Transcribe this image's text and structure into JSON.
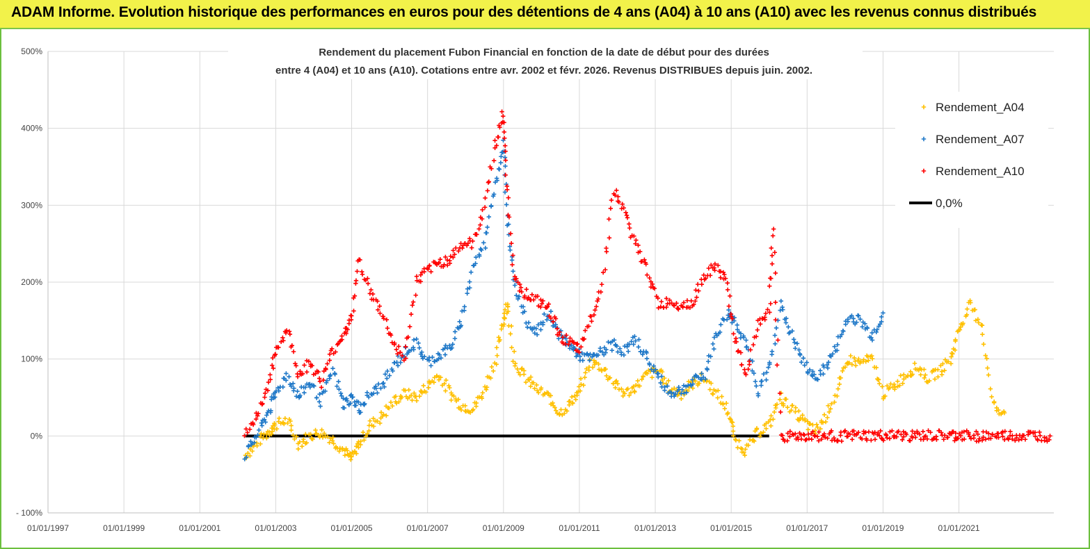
{
  "header": {
    "title": "ADAM Informe. Evolution historique des performances en euros pour des détentions de 4 ans (A04) à 10 ans (A10) avec les revenus connus distribués"
  },
  "chart_data": {
    "type": "scatter",
    "title_lines": [
      "Rendement du placement Fubon Financial  en fonction de la date de début pour des durées",
      "entre 4 (A04) et 10 ans (A10).  Cotations entre avr. 2002 et févr. 2026. Revenus DISTRIBUES depuis juin. 2002."
    ],
    "xlabel": "",
    "ylabel": "",
    "x_ticks": [
      "01/01/1997",
      "01/01/1999",
      "01/01/2001",
      "01/01/2003",
      "01/01/2005",
      "01/01/2007",
      "01/01/2009",
      "01/01/2011",
      "01/01/2013",
      "01/01/2015",
      "01/01/2017",
      "01/01/2019",
      "01/01/2021"
    ],
    "xlim": [
      1997.0,
      2023.5
    ],
    "y_ticks": [
      "- 100%",
      "0%",
      "100%",
      "200%",
      "300%",
      "400%",
      "500%"
    ],
    "ylim": [
      -100,
      500
    ],
    "legend_position": "top-right",
    "colors": {
      "A04": "#ffc000",
      "A07": "#1f78c8",
      "A10": "#ff0000",
      "zero": "#000000"
    },
    "series": [
      {
        "name": "Rendement_A04",
        "color": "#ffc000",
        "x": [
          2002.2,
          2002.5,
          2002.8,
          2003.0,
          2003.3,
          2003.6,
          2003.9,
          2004.2,
          2004.5,
          2004.8,
          2005.0,
          2005.2,
          2005.5,
          2005.8,
          2006.1,
          2006.4,
          2006.7,
          2007.0,
          2007.3,
          2007.6,
          2007.9,
          2008.2,
          2008.5,
          2008.8,
          2009.0,
          2009.1,
          2009.3,
          2009.6,
          2009.9,
          2010.2,
          2010.5,
          2010.8,
          2011.0,
          2011.3,
          2011.6,
          2011.9,
          2012.2,
          2012.5,
          2012.8,
          2013.1,
          2013.4,
          2013.7,
          2014.0,
          2014.3,
          2014.6,
          2014.9,
          2015.1,
          2015.4,
          2015.7,
          2016.0,
          2016.3,
          2016.6,
          2016.9,
          2017.2,
          2017.5,
          2017.8,
          2018.1,
          2018.4,
          2018.7,
          2019.0,
          2019.3,
          2019.6,
          2019.9,
          2020.2,
          2020.5,
          2020.8,
          2021.0,
          2021.3,
          2021.6,
          2021.9,
          2022.2
        ],
        "values": [
          -25,
          -10,
          5,
          15,
          20,
          -10,
          0,
          5,
          -5,
          -20,
          -30,
          -10,
          15,
          25,
          45,
          55,
          50,
          65,
          80,
          55,
          40,
          35,
          60,
          100,
          150,
          175,
          95,
          75,
          60,
          50,
          30,
          45,
          60,
          95,
          90,
          70,
          55,
          65,
          80,
          85,
          60,
          55,
          70,
          75,
          55,
          35,
          -5,
          -20,
          5,
          15,
          50,
          35,
          20,
          5,
          25,
          60,
          100,
          95,
          100,
          55,
          65,
          80,
          90,
          75,
          85,
          100,
          140,
          170,
          145,
          40,
          30
        ]
      },
      {
        "name": "Rendement_A07",
        "color": "#1f78c8",
        "x": [
          2002.2,
          2002.5,
          2002.8,
          2003.0,
          2003.3,
          2003.6,
          2003.9,
          2004.2,
          2004.5,
          2004.8,
          2005.0,
          2005.2,
          2005.5,
          2005.8,
          2006.1,
          2006.4,
          2006.7,
          2007.0,
          2007.3,
          2007.6,
          2007.9,
          2008.2,
          2008.5,
          2008.8,
          2009.0,
          2009.1,
          2009.3,
          2009.6,
          2009.9,
          2010.2,
          2010.5,
          2010.8,
          2011.0,
          2011.3,
          2011.6,
          2011.9,
          2012.2,
          2012.5,
          2012.8,
          2013.1,
          2013.4,
          2013.7,
          2014.0,
          2014.3,
          2014.6,
          2014.9,
          2015.1,
          2015.4,
          2015.7,
          2016.0,
          2016.3,
          2016.6,
          2016.9,
          2017.2,
          2017.5,
          2017.8,
          2018.1,
          2018.4,
          2018.7,
          2019.0
        ],
        "values": [
          -25,
          0,
          30,
          55,
          80,
          50,
          70,
          45,
          85,
          40,
          50,
          35,
          55,
          65,
          90,
          110,
          120,
          95,
          105,
          115,
          150,
          220,
          250,
          330,
          380,
          280,
          200,
          150,
          135,
          160,
          130,
          115,
          105,
          100,
          110,
          120,
          110,
          125,
          100,
          75,
          55,
          60,
          70,
          80,
          130,
          160,
          150,
          120,
          55,
          90,
          170,
          130,
          95,
          75,
          90,
          120,
          155,
          150,
          130,
          160
        ]
      },
      {
        "name": "Rendement_A10",
        "color": "#ff0000",
        "x": [
          2002.2,
          2002.5,
          2002.8,
          2003.0,
          2003.3,
          2003.6,
          2003.9,
          2004.2,
          2004.5,
          2004.8,
          2005.0,
          2005.2,
          2005.5,
          2005.8,
          2006.1,
          2006.4,
          2006.7,
          2007.0,
          2007.3,
          2007.6,
          2007.9,
          2008.2,
          2008.5,
          2008.8,
          2009.0,
          2009.1,
          2009.3,
          2009.6,
          2009.9,
          2010.2,
          2010.5,
          2010.8,
          2011.0,
          2011.3,
          2011.6,
          2011.9,
          2012.2,
          2012.5,
          2012.8,
          2013.1,
          2013.4,
          2013.7,
          2014.0,
          2014.3,
          2014.6,
          2014.9,
          2015.1,
          2015.4,
          2015.7,
          2016.0,
          2016.1,
          2016.3,
          2016.6,
          2016.9,
          2017.2,
          2017.5,
          2017.8,
          2018.1,
          2018.4,
          2018.7,
          2019.0,
          2019.3,
          2019.6,
          2019.9,
          2020.2,
          2020.5,
          2020.8,
          2021.0,
          2021.3,
          2021.6,
          2021.9,
          2022.2,
          2022.5,
          2022.8,
          2023.1,
          2023.4
        ],
        "values": [
          0,
          25,
          65,
          110,
          140,
          80,
          95,
          70,
          110,
          135,
          150,
          230,
          185,
          160,
          120,
          100,
          200,
          215,
          225,
          230,
          250,
          250,
          300,
          380,
          420,
          320,
          200,
          185,
          175,
          165,
          130,
          120,
          110,
          155,
          195,
          320,
          290,
          245,
          215,
          170,
          175,
          170,
          175,
          210,
          220,
          200,
          120,
          80,
          145,
          165,
          270,
          0,
          0,
          0,
          0,
          0,
          0,
          0,
          0,
          0,
          0,
          0,
          0,
          0,
          0,
          0,
          0,
          0,
          0,
          0,
          0,
          0,
          0,
          0,
          0,
          0
        ]
      }
    ],
    "reference_line": {
      "name": "0,0%",
      "x_range": [
        2002.2,
        2016.0
      ],
      "value": 0
    }
  }
}
